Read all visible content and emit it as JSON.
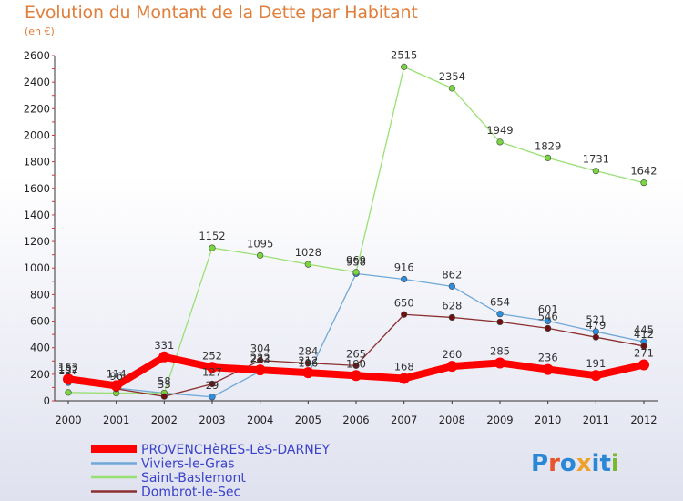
{
  "header": {
    "title": "Evolution du Montant de la Dette par Habitant",
    "unit": "(en €)"
  },
  "logo": {
    "text": "Proxiti"
  },
  "chart_data": {
    "type": "line",
    "title": "Evolution du Montant de la Dette par Habitant",
    "subtitle": "(en €)",
    "xlabel": "",
    "ylabel": "",
    "x": [
      "2000",
      "2001",
      "2002",
      "2003",
      "2004",
      "2005",
      "2006",
      "2007",
      "2008",
      "2009",
      "2010",
      "2011",
      "2012"
    ],
    "ylim": [
      0,
      2600
    ],
    "yticks": [
      0,
      200,
      400,
      600,
      800,
      1000,
      1200,
      1400,
      1600,
      1800,
      2000,
      2200,
      2400,
      2600
    ],
    "grid": false,
    "legend_position": "bottom-left",
    "series": [
      {
        "name": "PROVENCHèRES-LèS-DARNEY",
        "color": "#ff0000",
        "marker_color": "#ff0000",
        "values": [
          163,
          114,
          331,
          252,
          232,
          212,
          190,
          168,
          260,
          285,
          236,
          191,
          271
        ],
        "labels": [
          "163",
          "114",
          "331",
          "252",
          "232",
          "212",
          "190",
          "168",
          "260",
          "285",
          "236",
          "191",
          "271"
        ]
      },
      {
        "name": "Viviers-le-Gras",
        "color": "#6fa8d8",
        "marker_color": "#2d8fe0",
        "values": [
          137,
          96,
          58,
          29,
          223,
          196,
          958,
          916,
          862,
          654,
          601,
          521,
          445
        ],
        "labels": [
          "137",
          "96",
          "58",
          "29",
          "223",
          "196",
          "958",
          "916",
          "862",
          "654",
          "601",
          "521",
          "445"
        ]
      },
      {
        "name": "Saint-Baslemont",
        "color": "#99e073",
        "marker_color": "#7ad63f",
        "values": [
          63,
          58,
          58,
          1152,
          1095,
          1028,
          969,
          2515,
          2354,
          1949,
          1829,
          1731,
          1642
        ],
        "labels": [
          "",
          "",
          "",
          "1152",
          "1095",
          "1028",
          "969",
          "2515",
          "2354",
          "1949",
          "1829",
          "1731",
          "1642"
        ]
      },
      {
        "name": "Dombrot-le-Sec",
        "color": "#8b3030",
        "marker_color": "#6d1212",
        "values": [
          152,
          90,
          33,
          127,
          304,
          284,
          265,
          650,
          628,
          594,
          546,
          479,
          412
        ],
        "labels": [
          "152",
          "",
          "33",
          "127",
          "304",
          "284",
          "265",
          "650",
          "628",
          "",
          "546",
          "479",
          "412"
        ]
      }
    ]
  }
}
